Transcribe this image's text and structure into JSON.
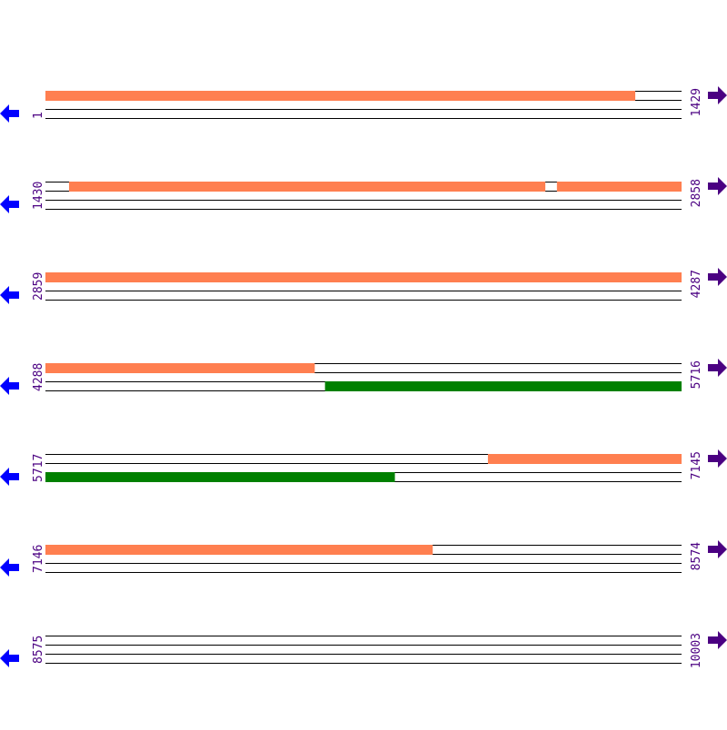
{
  "colors": {
    "forward_feature": "#ff7f50",
    "reverse_feature": "#008000",
    "track_line": "#000000",
    "label": "#4b0082",
    "left_arrow": "#0000ff",
    "right_arrow": "#4b0082"
  },
  "icons": {
    "left": "arrow-left-icon",
    "right": "arrow-right-icon"
  },
  "rows": [
    {
      "start": "1",
      "end": "1429"
    },
    {
      "start": "1430",
      "end": "2858"
    },
    {
      "start": "2859",
      "end": "4287"
    },
    {
      "start": "4288",
      "end": "5716"
    },
    {
      "start": "5717",
      "end": "7145"
    },
    {
      "start": "7146",
      "end": "8574"
    },
    {
      "start": "8575",
      "end": "10003"
    }
  ],
  "features": [
    {
      "start": 1,
      "end": 1325,
      "strand": "forward"
    },
    {
      "start": 1483,
      "end": 2552,
      "strand": "forward"
    },
    {
      "start": 2579,
      "end": 4892,
      "strand": "forward"
    },
    {
      "start": 4916,
      "end": 6501,
      "strand": "reverse"
    },
    {
      "start": 6711,
      "end": 8015,
      "strand": "forward"
    }
  ]
}
